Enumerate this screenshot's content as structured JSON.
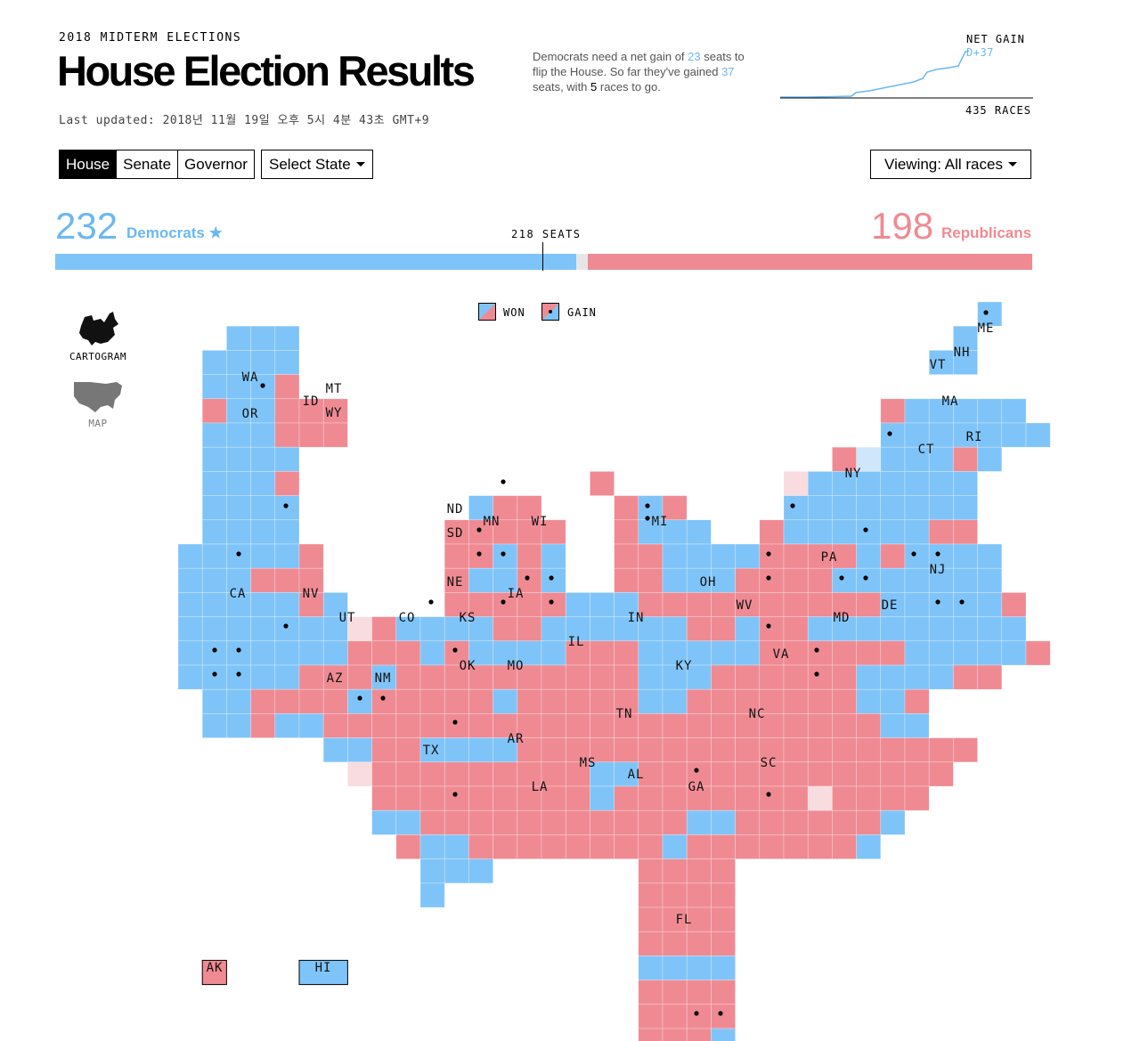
{
  "header": {
    "kicker": "2018 MIDTERM ELECTIONS",
    "title": "House Election Results",
    "updated": "Last updated: 2018년 11월 19일 오후 5시 4분 43초 GMT+9"
  },
  "summary": {
    "part1": "Democrats need a net gain of ",
    "need": "23",
    "part2": " seats to flip the House. So far they've gained ",
    "gained": "37",
    "part3": " seats, with ",
    "remaining": "5",
    "part4": " races to go."
  },
  "net_gain": {
    "label": "NET GAIN",
    "value": "D+37",
    "races_label": "435 RACES",
    "line_color": "#6ab8f2"
  },
  "tabs": [
    {
      "label": "House",
      "active": true
    },
    {
      "label": "Senate",
      "active": false
    },
    {
      "label": "Governor",
      "active": false
    }
  ],
  "state_select": {
    "label": "Select State"
  },
  "viewing_select": {
    "label": "Viewing: All races"
  },
  "tally": {
    "dem_count": "232",
    "dem_label": "Democrats ★",
    "rep_count": "198",
    "rep_label": "Republicans",
    "majority_label": "218 SEATS",
    "dem_seats": 232,
    "rep_seats": 198,
    "total_seats": 435,
    "majority": 218
  },
  "colors": {
    "dem": "#7fc4f8",
    "rep": "#ef8a93",
    "dem_light": "#cfe6fb",
    "rep_light": "#f8dcdf",
    "bar_remaining": "#e6e6e6"
  },
  "view_toggle": {
    "cartogram_label": "CARTOGRAM",
    "map_label": "MAP"
  },
  "legend": {
    "won_label": "WON",
    "gain_label": "GAIN"
  },
  "states": [
    "WA",
    "OR",
    "CA",
    "NV",
    "ID",
    "MT",
    "WY",
    "UT",
    "AZ",
    "NM",
    "CO",
    "ND",
    "SD",
    "NE",
    "KS",
    "OK",
    "TX",
    "MN",
    "IA",
    "MO",
    "AR",
    "LA",
    "WI",
    "IL",
    "MI",
    "IN",
    "OH",
    "KY",
    "TN",
    "MS",
    "AL",
    "GA",
    "FL",
    "SC",
    "NC",
    "VA",
    "WV",
    "MD",
    "DE",
    "PA",
    "NJ",
    "NY",
    "CT",
    "RI",
    "MA",
    "VT",
    "NH",
    "ME",
    "AK",
    "HI"
  ]
}
